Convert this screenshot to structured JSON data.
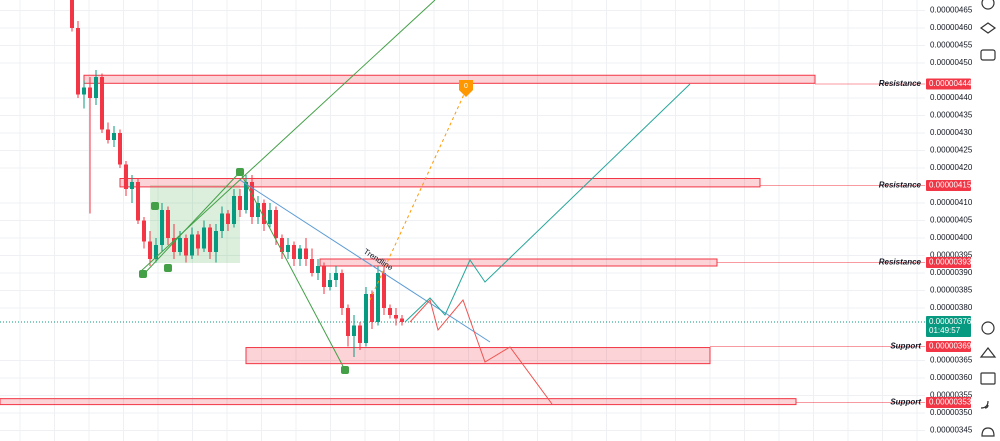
{
  "chart_data": {
    "type": "candlestick",
    "annotation": "Trendline",
    "marker_label": "0",
    "ylim": [
      3.42e-06,
      4.68e-06
    ],
    "yticks": [
      {
        "value": 4.65e-06,
        "label": "0.00000465"
      },
      {
        "value": 4.6e-06,
        "label": "0.00000460"
      },
      {
        "value": 4.55e-06,
        "label": "0.00000455"
      },
      {
        "value": 4.5e-06,
        "label": "0.00000450"
      },
      {
        "value": 4.4e-06,
        "label": "0.00000440"
      },
      {
        "value": 4.35e-06,
        "label": "0.00000435"
      },
      {
        "value": 4.3e-06,
        "label": "0.00000430"
      },
      {
        "value": 4.25e-06,
        "label": "0.00000425"
      },
      {
        "value": 4.2e-06,
        "label": "0.00000420"
      },
      {
        "value": 4.1e-06,
        "label": "0.00000410"
      },
      {
        "value": 4.05e-06,
        "label": "0.00000405"
      },
      {
        "value": 4e-06,
        "label": "0.00000400"
      },
      {
        "value": 3.95e-06,
        "label": "0.00000395"
      },
      {
        "value": 3.9e-06,
        "label": "0.00000390"
      },
      {
        "value": 3.85e-06,
        "label": "0.00000385"
      },
      {
        "value": 3.8e-06,
        "label": "0.00000380"
      },
      {
        "value": 3.65e-06,
        "label": "0.00000365"
      },
      {
        "value": 3.6e-06,
        "label": "0.00000360"
      },
      {
        "value": 3.55e-06,
        "label": "0.00000355"
      },
      {
        "value": 3.5e-06,
        "label": "0.00000350"
      },
      {
        "value": 3.45e-06,
        "label": "0.00000345"
      }
    ],
    "up_color": "#089981",
    "down_color": "#f23645",
    "grid": true,
    "open": [
      4.68e-06,
      4.6e-06,
      4.41e-06,
      4.43e-06,
      4.4e-06,
      4.46e-06,
      4.31e-06,
      4.28e-06,
      4.3e-06,
      4.21e-06,
      4.14e-06,
      4.16e-06,
      4.05e-06,
      3.99e-06,
      3.94e-06,
      3.98e-06,
      4.08e-06,
      4e-06,
      3.96e-06,
      4e-06,
      3.95e-06,
      4.01e-06,
      3.97e-06,
      4.03e-06,
      3.96e-06,
      4.02e-06,
      4.07e-06,
      4.04e-06,
      4.12e-06,
      4.08e-06,
      4.16e-06,
      4.06e-06,
      4.1e-06,
      4.04e-06,
      4.08e-06,
      4e-06,
      3.96e-06,
      3.98e-06,
      3.94e-06,
      3.97e-06,
      3.94e-06,
      3.9e-06,
      3.92e-06,
      3.86e-06,
      3.88e-06,
      3.9e-06,
      3.8e-06,
      3.72e-06,
      3.75e-06,
      3.7e-06,
      3.84e-06,
      3.76e-06,
      3.9e-06,
      3.8e-06,
      3.78e-06,
      3.77e-06
    ],
    "high": [
      4.69e-06,
      4.62e-06,
      4.45e-06,
      4.46e-06,
      4.48e-06,
      4.47e-06,
      4.33e-06,
      4.32e-06,
      4.31e-06,
      4.22e-06,
      4.18e-06,
      4.17e-06,
      4.06e-06,
      4.02e-06,
      4e-06,
      4.1e-06,
      4.09e-06,
      4.04e-06,
      4.02e-06,
      4.01e-06,
      4.03e-06,
      4.02e-06,
      4.05e-06,
      4.04e-06,
      4.04e-06,
      4.09e-06,
      4.08e-06,
      4.14e-06,
      4.14e-06,
      4.18e-06,
      4.18e-06,
      4.12e-06,
      4.11e-06,
      4.1e-06,
      4.09e-06,
      4.01e-06,
      4e-06,
      3.99e-06,
      3.98e-06,
      4e-06,
      3.97e-06,
      3.94e-06,
      3.93e-06,
      3.9e-06,
      3.92e-06,
      3.91e-06,
      3.81e-06,
      3.78e-06,
      3.76e-06,
      3.86e-06,
      3.85e-06,
      3.92e-06,
      3.92e-06,
      3.81e-06,
      3.8e-06,
      3.78e-06
    ],
    "low": [
      4.59e-06,
      4.4e-06,
      4.37e-06,
      4.07e-06,
      4.38e-06,
      4.3e-06,
      4.27e-06,
      4.26e-06,
      4.2e-06,
      4.12e-06,
      4.1e-06,
      4.04e-06,
      3.97e-06,
      3.92e-06,
      3.93e-06,
      3.96e-06,
      3.98e-06,
      3.94e-06,
      3.95e-06,
      3.93e-06,
      3.94e-06,
      3.95e-06,
      3.96e-06,
      3.94e-06,
      3.93e-06,
      4e-06,
      4.02e-06,
      4.03e-06,
      4.06e-06,
      4.07e-06,
      4.04e-06,
      4.04e-06,
      4.02e-06,
      4.03e-06,
      3.98e-06,
      3.94e-06,
      3.94e-06,
      3.92e-06,
      3.92e-06,
      3.92e-06,
      3.89e-06,
      3.88e-06,
      3.84e-06,
      3.85e-06,
      3.86e-06,
      3.78e-06,
      3.69e-06,
      3.66e-06,
      3.68e-06,
      3.69e-06,
      3.74e-06,
      3.75e-06,
      3.78e-06,
      3.77e-06,
      3.75e-06,
      3.75e-06
    ],
    "close": [
      4.6e-06,
      4.41e-06,
      4.43e-06,
      4.4e-06,
      4.46e-06,
      4.31e-06,
      4.28e-06,
      4.3e-06,
      4.21e-06,
      4.14e-06,
      4.16e-06,
      4.05e-06,
      3.99e-06,
      3.94e-06,
      3.98e-06,
      4.08e-06,
      4e-06,
      3.96e-06,
      4e-06,
      3.95e-06,
      4.01e-06,
      3.97e-06,
      4.03e-06,
      3.96e-06,
      4.02e-06,
      4.07e-06,
      4.04e-06,
      4.12e-06,
      4.08e-06,
      4.16e-06,
      4.06e-06,
      4.1e-06,
      4.04e-06,
      4.08e-06,
      4e-06,
      3.96e-06,
      3.98e-06,
      3.94e-06,
      3.97e-06,
      3.94e-06,
      3.9e-06,
      3.92e-06,
      3.86e-06,
      3.88e-06,
      3.9e-06,
      3.8e-06,
      3.72e-06,
      3.75e-06,
      3.7e-06,
      3.84e-06,
      3.76e-06,
      3.9e-06,
      3.8e-06,
      3.78e-06,
      3.77e-06,
      3.76e-06
    ],
    "levels": [
      {
        "name": "Resistance",
        "value": 4.44e-06,
        "label": "0.00000444",
        "top": 4.465e-06,
        "bottom": 4.442e-06
      },
      {
        "name": "Resistance",
        "value": 4.15e-06,
        "label": "0.00000415",
        "top": 4.17e-06,
        "bottom": 4.146e-06
      },
      {
        "name": "Resistance",
        "value": 3.93e-06,
        "label": "0.00000393",
        "top": 3.94e-06,
        "bottom": 3.92e-06
      },
      {
        "name": "Support",
        "value": 3.69e-06,
        "label": "0.00000369",
        "top": 3.687e-06,
        "bottom": 3.641e-06
      },
      {
        "name": "Support",
        "value": 3.53e-06,
        "label": "0.00000353",
        "top": 3.541e-06,
        "bottom": 3.524e-06
      }
    ],
    "current": {
      "value": 3.76e-06,
      "label": "0.00000376",
      "countdown": "01:49:57"
    }
  }
}
